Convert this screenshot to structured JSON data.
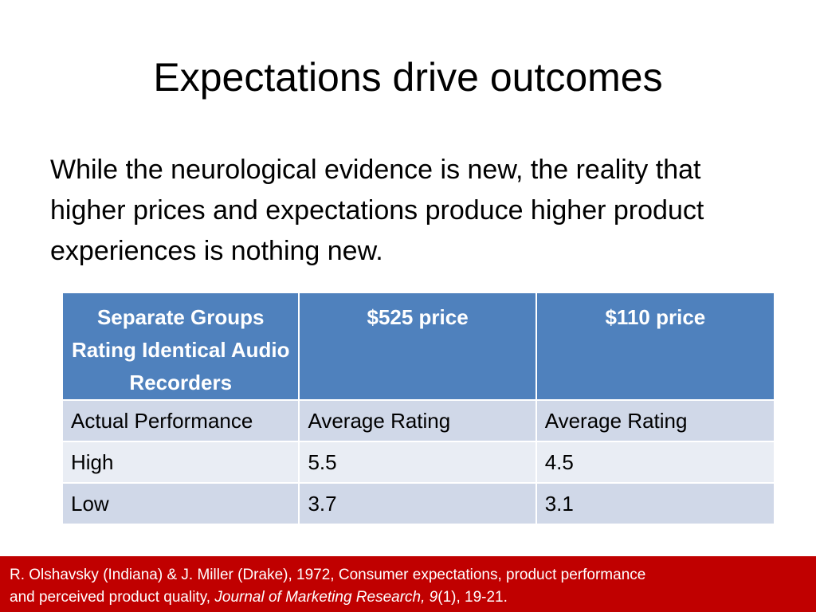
{
  "slide": {
    "title": "Expectations drive outcomes",
    "body": "While the neurological evidence is new, the reality that higher prices and expectations produce higher product experiences is nothing new."
  },
  "table": {
    "headers": [
      "Separate Groups Rating Identical Audio Recorders",
      "$525 price",
      "$110 price"
    ],
    "rows": [
      [
        "Actual Performance",
        "Average Rating",
        "Average Rating"
      ],
      [
        "High",
        "5.5",
        "4.5"
      ],
      [
        "Low",
        "3.7",
        "3.1"
      ]
    ]
  },
  "citation": {
    "line1": "R. Olshavsky (Indiana) & J. Miller (Drake), 1972, Consumer expectations, product performance",
    "line2_plain": "and perceived product quality, ",
    "line2_italic": "Journal of Marketing Research, 9",
    "line2_tail": "(1), 19-21."
  },
  "colors": {
    "header_blue": "#4f81bd",
    "row_dark": "#d0d8e8",
    "row_light": "#e9edf4",
    "citation_red": "#c00000"
  }
}
